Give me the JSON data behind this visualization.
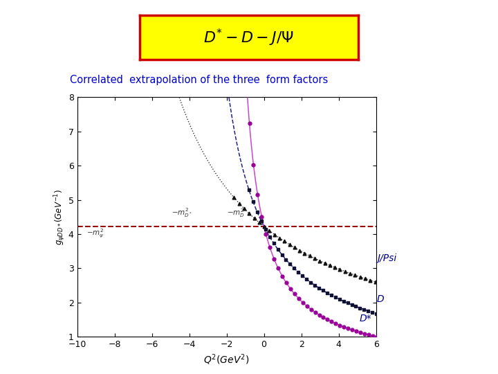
{
  "subtitle": "Correlated  extrapolation of the three  form factors",
  "subtitle_color": "#0000cc",
  "xlabel": "$Q^2(GeV^2)$",
  "ylabel": "$g_{\\psi DD*}(GeV^{-1})$",
  "xlim": [
    -10,
    6
  ],
  "ylim": [
    1,
    8
  ],
  "yticks": [
    1,
    2,
    3,
    4,
    5,
    6,
    7,
    8
  ],
  "xticks": [
    -10,
    -8,
    -6,
    -4,
    -2,
    0,
    2,
    4,
    6
  ],
  "horizontal_line_y": 4.22,
  "horizontal_line_color": "#990000",
  "mpsi2_abs": 9.6,
  "mDstar2_abs": 3.97,
  "mD2_abs": 1.87,
  "g0": 4.22,
  "g0_jpsi": 4.22,
  "g0_D": 4.22,
  "g0_Dstar": 4.22,
  "D_curve_color": "#cc44cc",
  "Dstar_curve_color": "#222288",
  "Jpsi_curve_color": "#333333",
  "label_color": "#000088",
  "bg_color": "#ffffff",
  "box_facecolor": "#ffff00",
  "box_edgecolor": "#cc0000"
}
